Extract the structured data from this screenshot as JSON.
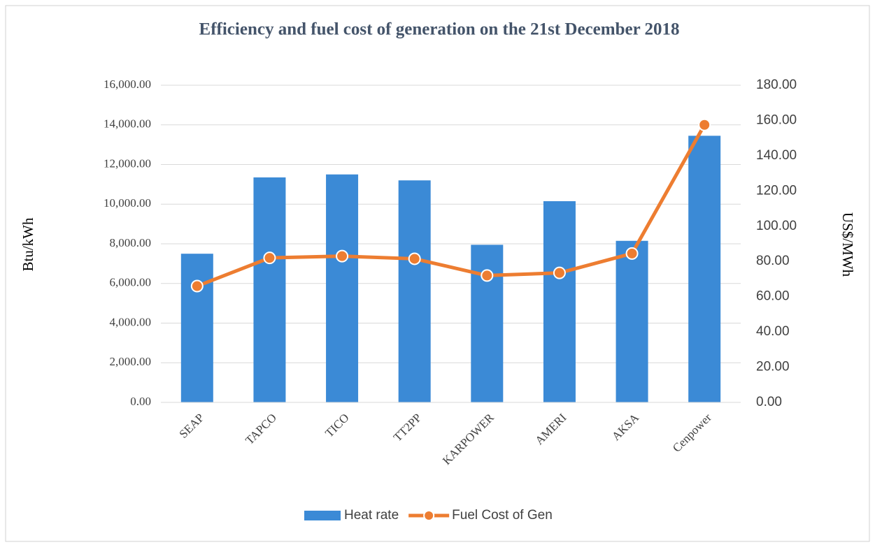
{
  "chart_data": {
    "type": "bar-line",
    "title": "Efficiency and fuel cost of generation on the 21st December 2018",
    "ylabel": "Btu/kWh",
    "y2label": "US$/MWh",
    "categories": [
      "SEAP",
      "TAPCO",
      "TICO",
      "TT2PP",
      "KARPOWER",
      "AMERI",
      "AKSA",
      "Cenpower"
    ],
    "series": [
      {
        "name": "Heat rate",
        "type": "bar",
        "color": "#3b8ad6",
        "values": [
          7500,
          11350,
          11500,
          11200,
          7950,
          10150,
          8150,
          13450
        ]
      },
      {
        "name": "Fuel Cost of Gen",
        "type": "line",
        "axis": "y2",
        "color": "#ed7d31",
        "values": [
          66,
          82,
          83,
          81.5,
          72,
          73.5,
          84.5,
          157.5
        ]
      }
    ],
    "ylim": [
      0,
      16000
    ],
    "yticks": [
      {
        "value": 0,
        "label": "0.00"
      },
      {
        "value": 2000,
        "label": "2,000.00"
      },
      {
        "value": 4000,
        "label": "4,000.00"
      },
      {
        "value": 6000,
        "label": "6,000.00"
      },
      {
        "value": 8000,
        "label": "8,000.00"
      },
      {
        "value": 10000,
        "label": "10,000.00"
      },
      {
        "value": 12000,
        "label": "12,000.00"
      },
      {
        "value": 14000,
        "label": "14,000.00"
      },
      {
        "value": 16000,
        "label": "16,000.00"
      }
    ],
    "y2lim": [
      0,
      180
    ],
    "y2ticks": [
      {
        "value": 0,
        "label": "0.00"
      },
      {
        "value": 20,
        "label": "20.00"
      },
      {
        "value": 40,
        "label": "40.00"
      },
      {
        "value": 60,
        "label": "60.00"
      },
      {
        "value": 80,
        "label": "80.00"
      },
      {
        "value": 100,
        "label": "100.00"
      },
      {
        "value": 120,
        "label": "120.00"
      },
      {
        "value": 140,
        "label": "140.00"
      },
      {
        "value": 160,
        "label": "160.00"
      },
      {
        "value": 180,
        "label": "180.00"
      }
    ],
    "grid": true,
    "legend": "bottom"
  }
}
